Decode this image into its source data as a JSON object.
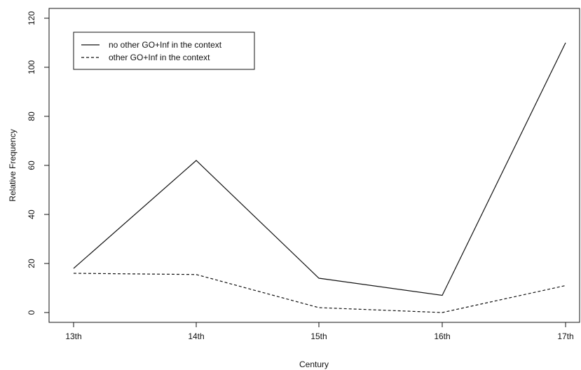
{
  "chart_data": {
    "type": "line",
    "categories": [
      "13th",
      "14th",
      "15th",
      "16th",
      "17th"
    ],
    "series": [
      {
        "name": "no other GO+Inf in the context",
        "values": [
          18,
          62,
          14,
          7,
          110
        ],
        "line_style": "solid",
        "color": "#111111"
      },
      {
        "name": "other GO+Inf in the context",
        "values": [
          16,
          15.5,
          2,
          0,
          11
        ],
        "line_style": "dashed",
        "color": "#111111"
      }
    ],
    "xlabel": "Century",
    "ylabel": "Relative Frequency",
    "yticks": [
      0,
      20,
      40,
      60,
      80,
      100,
      120
    ],
    "ylim": [
      -4,
      124
    ],
    "legend_position": "top-left",
    "grid": false
  }
}
